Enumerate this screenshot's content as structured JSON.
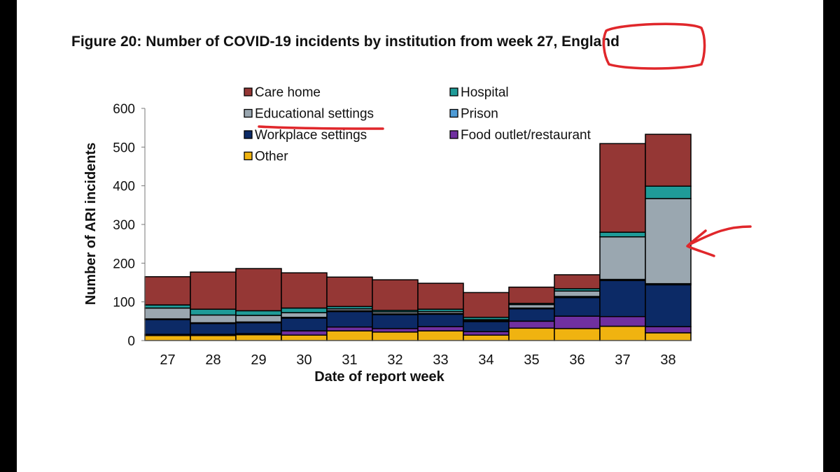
{
  "figure_title": "Figure 20: Number of COVID-19 incidents by institution from week 27, England",
  "colors": {
    "care_home": "#953735",
    "hospital": "#1f9b98",
    "educational": "#9aa7b0",
    "prison": "#4e9bd5",
    "workplace": "#0c2a66",
    "food": "#7030a0",
    "other": "#f0b310",
    "annotation": "#e0272b"
  },
  "chart_data": {
    "type": "bar",
    "stacked": true,
    "title": "Figure 20: Number of COVID-19 incidents by institution from week 27, England",
    "xlabel": "Date of report week",
    "ylabel": "Number of ARI incidents",
    "ylim": [
      0,
      600
    ],
    "yticks": [
      0,
      100,
      200,
      300,
      400,
      500,
      600
    ],
    "categories": [
      "27",
      "28",
      "29",
      "30",
      "31",
      "32",
      "33",
      "34",
      "35",
      "36",
      "37",
      "38"
    ],
    "legend": [
      {
        "key": "care_home",
        "label": "Care home"
      },
      {
        "key": "hospital",
        "label": "Hospital"
      },
      {
        "key": "educational",
        "label": "Educational settings"
      },
      {
        "key": "prison",
        "label": "Prison"
      },
      {
        "key": "workplace",
        "label": "Workplace settings"
      },
      {
        "key": "food",
        "label": "Food outlet/restaurant"
      },
      {
        "key": "other",
        "label": "Other"
      }
    ],
    "series": [
      {
        "key": "other",
        "name": "Other",
        "values": [
          13,
          13,
          15,
          14,
          25,
          22,
          25,
          14,
          32,
          31,
          37,
          20
        ]
      },
      {
        "key": "food",
        "name": "Food outlet/restaurant",
        "values": [
          3,
          3,
          3,
          11,
          10,
          9,
          11,
          9,
          18,
          32,
          25,
          16
        ]
      },
      {
        "key": "workplace",
        "name": "Workplace settings",
        "values": [
          38,
          28,
          28,
          33,
          40,
          36,
          32,
          26,
          32,
          48,
          93,
          108
        ]
      },
      {
        "key": "prison",
        "name": "Prison",
        "values": [
          2,
          2,
          2,
          2,
          2,
          2,
          2,
          2,
          2,
          3,
          3,
          3
        ]
      },
      {
        "key": "educational",
        "name": "Educational settings",
        "values": [
          28,
          20,
          17,
          12,
          5,
          5,
          5,
          3,
          9,
          14,
          110,
          220
        ]
      },
      {
        "key": "hospital",
        "name": "Hospital",
        "values": [
          8,
          15,
          12,
          12,
          6,
          4,
          6,
          6,
          3,
          6,
          12,
          32
        ]
      },
      {
        "key": "care_home",
        "name": "Care home",
        "values": [
          73,
          96,
          109,
          91,
          76,
          79,
          67,
          64,
          42,
          36,
          229,
          134
        ]
      }
    ]
  }
}
